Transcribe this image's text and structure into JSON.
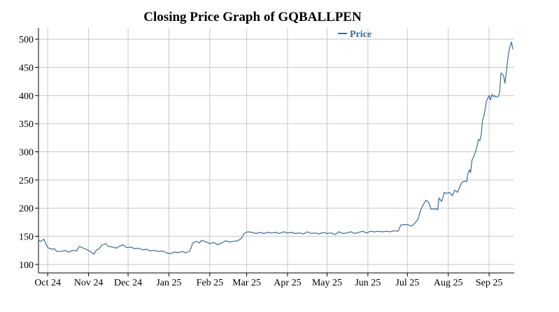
{
  "chart_data": {
    "type": "line",
    "title": "Closing Price Graph of GQBALLPEN",
    "xlabel": "",
    "ylabel": "",
    "x_tick_labels": [
      "Oct 24",
      "Nov 24",
      "Dec 24",
      "Jan 25",
      "Feb 25",
      "Mar 25",
      "Apr 25",
      "May 25",
      "Jun 25",
      "Jul 25",
      "Aug 25",
      "Sep 25"
    ],
    "x_tick_dates": [
      "2024-10-01",
      "2024-11-01",
      "2024-12-01",
      "2025-01-01",
      "2025-02-01",
      "2025-03-01",
      "2025-04-01",
      "2025-05-01",
      "2025-06-01",
      "2025-07-01",
      "2025-08-01",
      "2025-09-01"
    ],
    "xlim": [
      "2024-09-24",
      "2025-09-19"
    ],
    "y_ticks": [
      100,
      150,
      200,
      250,
      300,
      350,
      400,
      450,
      500
    ],
    "ylim": [
      85,
      520
    ],
    "grid": true,
    "legend": "top-center",
    "series": [
      {
        "name": "Price",
        "color": "#3a6b94",
        "points": [
          [
            "2024-09-24",
            143
          ],
          [
            "2024-09-26",
            141
          ],
          [
            "2024-09-28",
            145
          ],
          [
            "2024-10-01",
            130
          ],
          [
            "2024-10-04",
            127
          ],
          [
            "2024-10-06",
            128
          ],
          [
            "2024-10-08",
            123
          ],
          [
            "2024-10-11",
            123
          ],
          [
            "2024-10-14",
            125
          ],
          [
            "2024-10-17",
            122
          ],
          [
            "2024-10-20",
            125
          ],
          [
            "2024-10-23",
            124
          ],
          [
            "2024-10-25",
            132
          ],
          [
            "2024-10-28",
            129
          ],
          [
            "2024-10-31",
            126
          ],
          [
            "2024-11-03",
            122
          ],
          [
            "2024-11-05",
            118
          ],
          [
            "2024-11-07",
            126
          ],
          [
            "2024-11-09",
            128
          ],
          [
            "2024-11-11",
            134
          ],
          [
            "2024-11-14",
            137
          ],
          [
            "2024-11-16",
            132
          ],
          [
            "2024-11-19",
            131
          ],
          [
            "2024-11-22",
            129
          ],
          [
            "2024-11-25",
            133
          ],
          [
            "2024-11-27",
            135
          ],
          [
            "2024-11-30",
            130
          ],
          [
            "2024-12-03",
            131
          ],
          [
            "2024-12-06",
            128
          ],
          [
            "2024-12-09",
            129
          ],
          [
            "2024-12-12",
            126
          ],
          [
            "2024-12-15",
            127
          ],
          [
            "2024-12-18",
            124
          ],
          [
            "2024-12-21",
            125
          ],
          [
            "2024-12-24",
            123
          ],
          [
            "2024-12-27",
            124
          ],
          [
            "2024-12-30",
            121
          ],
          [
            "2025-01-02",
            119
          ],
          [
            "2025-01-05",
            122
          ],
          [
            "2025-01-08",
            121
          ],
          [
            "2025-01-11",
            123
          ],
          [
            "2025-01-14",
            121
          ],
          [
            "2025-01-17",
            124
          ],
          [
            "2025-01-19",
            138
          ],
          [
            "2025-01-22",
            141
          ],
          [
            "2025-01-24",
            138
          ],
          [
            "2025-01-26",
            143
          ],
          [
            "2025-01-29",
            140
          ],
          [
            "2025-02-01",
            137
          ],
          [
            "2025-02-04",
            139
          ],
          [
            "2025-02-07",
            135
          ],
          [
            "2025-02-10",
            138
          ],
          [
            "2025-02-13",
            142
          ],
          [
            "2025-02-16",
            140
          ],
          [
            "2025-02-19",
            141
          ],
          [
            "2025-02-22",
            142
          ],
          [
            "2025-02-25",
            146
          ],
          [
            "2025-02-27",
            155
          ],
          [
            "2025-03-02",
            158
          ],
          [
            "2025-03-05",
            157
          ],
          [
            "2025-03-08",
            155
          ],
          [
            "2025-03-11",
            157
          ],
          [
            "2025-03-14",
            155
          ],
          [
            "2025-03-17",
            157
          ],
          [
            "2025-03-20",
            156
          ],
          [
            "2025-03-23",
            157
          ],
          [
            "2025-03-26",
            155
          ],
          [
            "2025-03-29",
            158
          ],
          [
            "2025-04-01",
            156
          ],
          [
            "2025-04-04",
            157
          ],
          [
            "2025-04-07",
            155
          ],
          [
            "2025-04-10",
            156
          ],
          [
            "2025-04-13",
            154
          ],
          [
            "2025-04-16",
            158
          ],
          [
            "2025-04-19",
            155
          ],
          [
            "2025-04-22",
            156
          ],
          [
            "2025-04-25",
            154
          ],
          [
            "2025-04-28",
            157
          ],
          [
            "2025-05-01",
            155
          ],
          [
            "2025-05-04",
            156
          ],
          [
            "2025-05-07",
            153
          ],
          [
            "2025-05-10",
            158
          ],
          [
            "2025-05-13",
            155
          ],
          [
            "2025-05-16",
            156
          ],
          [
            "2025-05-19",
            158
          ],
          [
            "2025-05-22",
            155
          ],
          [
            "2025-05-25",
            157
          ],
          [
            "2025-05-28",
            159
          ],
          [
            "2025-05-31",
            156
          ],
          [
            "2025-06-03",
            159
          ],
          [
            "2025-06-06",
            158
          ],
          [
            "2025-06-09",
            159
          ],
          [
            "2025-06-12",
            158
          ],
          [
            "2025-06-15",
            159
          ],
          [
            "2025-06-18",
            158
          ],
          [
            "2025-06-21",
            160
          ],
          [
            "2025-06-24",
            159
          ],
          [
            "2025-06-26",
            170
          ],
          [
            "2025-06-29",
            171
          ],
          [
            "2025-07-02",
            170
          ],
          [
            "2025-07-04",
            168
          ],
          [
            "2025-07-06",
            172
          ],
          [
            "2025-07-09",
            180
          ],
          [
            "2025-07-11",
            196
          ],
          [
            "2025-07-13",
            206
          ],
          [
            "2025-07-15",
            214
          ],
          [
            "2025-07-17",
            211
          ],
          [
            "2025-07-19",
            198
          ],
          [
            "2025-07-22",
            199
          ],
          [
            "2025-07-24",
            197
          ],
          [
            "2025-07-25",
            218
          ],
          [
            "2025-07-27",
            212
          ],
          [
            "2025-07-29",
            228
          ],
          [
            "2025-07-31",
            226
          ],
          [
            "2025-08-02",
            228
          ],
          [
            "2025-08-04",
            222
          ],
          [
            "2025-08-06",
            232
          ],
          [
            "2025-08-08",
            228
          ],
          [
            "2025-08-11",
            245
          ],
          [
            "2025-08-13",
            248
          ],
          [
            "2025-08-15",
            247
          ],
          [
            "2025-08-16",
            262
          ],
          [
            "2025-08-17",
            268
          ],
          [
            "2025-08-18",
            263
          ],
          [
            "2025-08-19",
            285
          ],
          [
            "2025-08-20",
            290
          ],
          [
            "2025-08-22",
            302
          ],
          [
            "2025-08-24",
            322
          ],
          [
            "2025-08-25",
            320
          ],
          [
            "2025-08-26",
            330
          ],
          [
            "2025-08-27",
            356
          ],
          [
            "2025-08-28",
            363
          ],
          [
            "2025-08-29",
            376
          ],
          [
            "2025-08-30",
            390
          ],
          [
            "2025-09-01",
            400
          ],
          [
            "2025-09-02",
            392
          ],
          [
            "2025-09-03",
            402
          ],
          [
            "2025-09-04",
            398
          ],
          [
            "2025-09-05",
            400
          ],
          [
            "2025-09-06",
            397
          ],
          [
            "2025-09-08",
            398
          ],
          [
            "2025-09-09",
            405
          ],
          [
            "2025-09-10",
            440
          ],
          [
            "2025-09-11",
            438
          ],
          [
            "2025-09-12",
            435
          ],
          [
            "2025-09-13",
            422
          ],
          [
            "2025-09-14",
            440
          ],
          [
            "2025-09-15",
            462
          ],
          [
            "2025-09-16",
            478
          ],
          [
            "2025-09-17",
            488
          ],
          [
            "2025-09-18",
            495
          ],
          [
            "2025-09-19",
            482
          ]
        ]
      }
    ]
  }
}
